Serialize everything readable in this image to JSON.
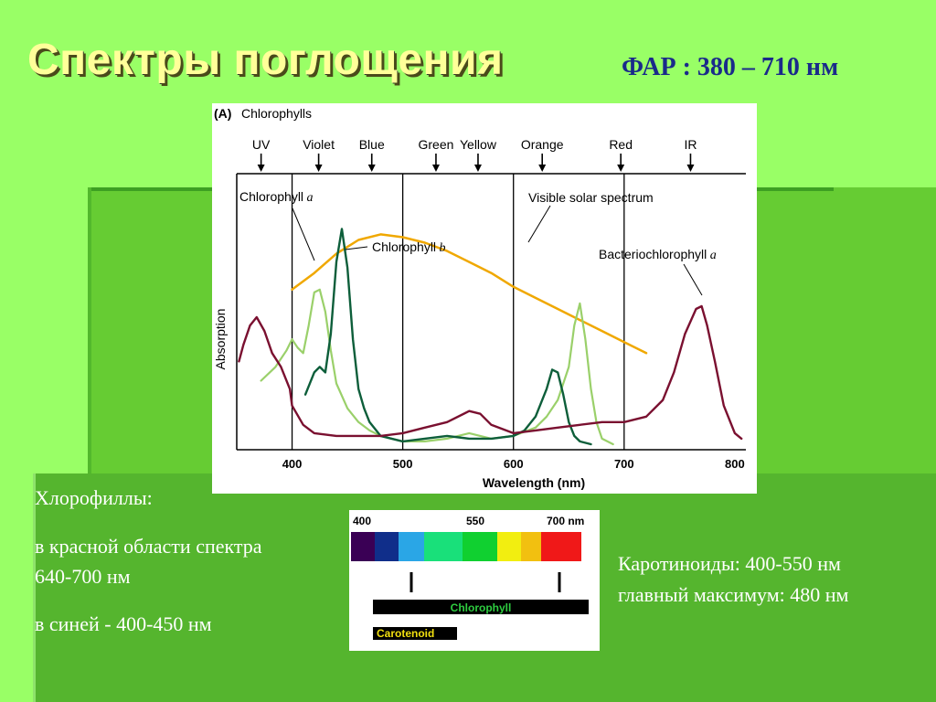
{
  "slide": {
    "title": "Спектры поглощения",
    "far_label": "ФАР : 380 – 710 нм",
    "left_text": {
      "heading": "Хлорофиллы:",
      "line1": "в красной области спектра",
      "line2": "640-700 нм",
      "line3": "в синей - 400-450 нм"
    },
    "right_text": {
      "line1": "Каротиноиды: 400-550 нм",
      "line2": "главный максимум: 480 нм"
    },
    "colors": {
      "background": "#99ff66",
      "panel": "#66cc33",
      "title": "#ffff99",
      "far": "#1a2a8a"
    }
  },
  "chart_data": [
    {
      "type": "line",
      "panel_label": "(A)",
      "title": "Chlorophylls",
      "xlabel": "Wavelength (nm)",
      "ylabel": "Absorption",
      "xlim": [
        350,
        810
      ],
      "ylim": [
        0,
        1
      ],
      "xticks": [
        400,
        500,
        600,
        700,
        800
      ],
      "vlines": [
        400,
        500,
        600,
        700
      ],
      "regions": [
        {
          "label": "UV",
          "x": 372
        },
        {
          "label": "Violet",
          "x": 424
        },
        {
          "label": "Blue",
          "x": 472
        },
        {
          "label": "Green",
          "x": 530
        },
        {
          "label": "Yellow",
          "x": 568
        },
        {
          "label": "Orange",
          "x": 626
        },
        {
          "label": "Red",
          "x": 697
        },
        {
          "label": "IR",
          "x": 760
        }
      ],
      "series": [
        {
          "name": "Visible solar spectrum",
          "color": "#f0a800",
          "x": [
            400,
            420,
            440,
            460,
            480,
            500,
            520,
            540,
            560,
            580,
            600,
            620,
            640,
            660,
            680,
            700,
            720
          ],
          "y": [
            0.58,
            0.64,
            0.71,
            0.76,
            0.78,
            0.77,
            0.75,
            0.72,
            0.68,
            0.64,
            0.59,
            0.55,
            0.51,
            0.47,
            0.43,
            0.39,
            0.35
          ]
        },
        {
          "name": "Chlorophyll a",
          "color": "#9ad06a",
          "x": [
            372,
            385,
            395,
            400,
            405,
            410,
            415,
            420,
            425,
            430,
            435,
            440,
            450,
            460,
            470,
            480,
            500,
            520,
            540,
            560,
            580,
            600,
            620,
            630,
            640,
            650,
            655,
            660,
            665,
            670,
            675,
            680,
            690
          ],
          "y": [
            0.25,
            0.3,
            0.36,
            0.4,
            0.37,
            0.35,
            0.45,
            0.57,
            0.58,
            0.5,
            0.36,
            0.24,
            0.15,
            0.1,
            0.07,
            0.05,
            0.03,
            0.03,
            0.04,
            0.06,
            0.04,
            0.05,
            0.08,
            0.12,
            0.18,
            0.3,
            0.45,
            0.53,
            0.4,
            0.22,
            0.1,
            0.04,
            0.02
          ]
        },
        {
          "name": "Chlorophyll b",
          "color": "#0d5e3a",
          "x": [
            412,
            420,
            425,
            430,
            435,
            440,
            445,
            450,
            455,
            460,
            465,
            470,
            480,
            500,
            520,
            540,
            560,
            580,
            600,
            610,
            620,
            630,
            635,
            640,
            645,
            650,
            655,
            660,
            670
          ],
          "y": [
            0.2,
            0.28,
            0.3,
            0.28,
            0.42,
            0.68,
            0.8,
            0.66,
            0.4,
            0.22,
            0.15,
            0.1,
            0.05,
            0.03,
            0.04,
            0.05,
            0.04,
            0.04,
            0.05,
            0.07,
            0.12,
            0.22,
            0.29,
            0.28,
            0.2,
            0.1,
            0.05,
            0.03,
            0.02
          ]
        },
        {
          "name": "Bacteriochlorophyll a",
          "color": "#7a1030",
          "x": [
            352,
            356,
            362,
            368,
            375,
            382,
            390,
            398,
            400,
            410,
            420,
            440,
            460,
            480,
            500,
            520,
            540,
            560,
            570,
            580,
            600,
            620,
            640,
            660,
            680,
            700,
            720,
            735,
            745,
            755,
            765,
            770,
            775,
            782,
            790,
            800,
            806
          ],
          "y": [
            0.32,
            0.38,
            0.45,
            0.48,
            0.43,
            0.35,
            0.3,
            0.22,
            0.16,
            0.09,
            0.06,
            0.05,
            0.05,
            0.05,
            0.06,
            0.08,
            0.1,
            0.14,
            0.13,
            0.09,
            0.06,
            0.07,
            0.08,
            0.09,
            0.1,
            0.1,
            0.12,
            0.18,
            0.28,
            0.42,
            0.51,
            0.52,
            0.45,
            0.32,
            0.16,
            0.06,
            0.04
          ]
        }
      ],
      "annotations": [
        {
          "text": "Chlorophyll",
          "italic_suffix": "a"
        },
        {
          "text": "Chlorophyll",
          "italic_suffix": "b"
        },
        {
          "text": "Visible solar spectrum"
        },
        {
          "text": "Bacteriochlorophyll",
          "italic_suffix": "a"
        }
      ]
    },
    {
      "type": "bar",
      "ticks": [
        "400",
        "550",
        "700 nm"
      ],
      "segments": [
        "#3a0055",
        "#102e8a",
        "#2aa6e6",
        "#19e07a",
        "#10d030",
        "#f2ee10",
        "#f2c010",
        "#f01818"
      ],
      "bars": [
        {
          "label": "Chlorophyll",
          "color": "#000000",
          "text_color": "#2ecc40"
        },
        {
          "label": "Carotenoid",
          "color": "#000000",
          "text_color": "#f2e010"
        }
      ]
    }
  ]
}
